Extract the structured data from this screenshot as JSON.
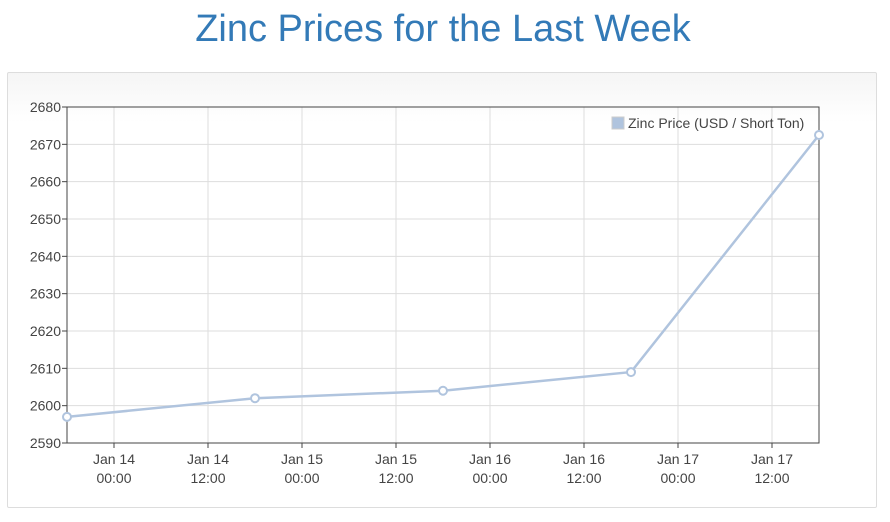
{
  "page": {
    "title": "Zinc Prices for the Last Week"
  },
  "chart_data": {
    "type": "line",
    "title": "Zinc Prices for the Last Week",
    "xlabel": "",
    "ylabel": "",
    "x_ticks": [
      {
        "line1": "Jan 14",
        "line2": "00:00",
        "t": 0
      },
      {
        "line1": "Jan 14",
        "line2": "12:00",
        "t": 12
      },
      {
        "line1": "Jan 15",
        "line2": "00:00",
        "t": 24
      },
      {
        "line1": "Jan 15",
        "line2": "12:00",
        "t": 36
      },
      {
        "line1": "Jan 16",
        "line2": "00:00",
        "t": 48
      },
      {
        "line1": "Jan 16",
        "line2": "12:00",
        "t": 60
      },
      {
        "line1": "Jan 17",
        "line2": "00:00",
        "t": 72
      },
      {
        "line1": "Jan 17",
        "line2": "12:00",
        "t": 84
      }
    ],
    "x_range": [
      -6,
      90
    ],
    "ylim": [
      2590,
      2680
    ],
    "y_ticks": [
      2590,
      2600,
      2610,
      2620,
      2630,
      2640,
      2650,
      2660,
      2670,
      2680
    ],
    "grid": true,
    "legend_position": "top-right",
    "series": [
      {
        "name": "Zinc Price (USD / Short Ton)",
        "color": "#b0c4de",
        "points": [
          {
            "t": -6,
            "y": 2597
          },
          {
            "t": 18,
            "y": 2602
          },
          {
            "t": 42,
            "y": 2604
          },
          {
            "t": 66,
            "y": 2609
          },
          {
            "t": 90,
            "y": 2672.5
          }
        ]
      }
    ]
  }
}
